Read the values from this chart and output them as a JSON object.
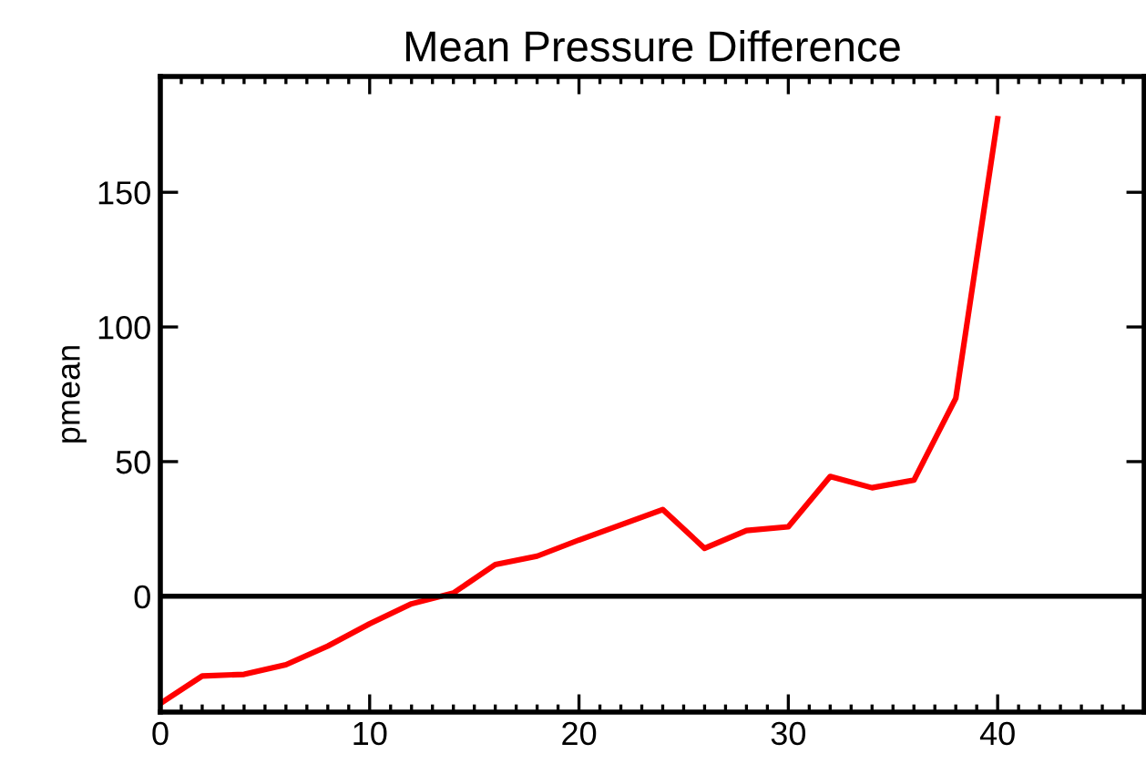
{
  "chart_data": {
    "type": "line",
    "title": "Mean Pressure Difference",
    "ylabel": "pmean",
    "x": [
      0,
      2,
      4,
      6,
      8,
      10,
      12,
      14,
      16,
      18,
      20,
      22,
      24,
      26,
      28,
      30,
      32,
      34,
      36,
      38,
      40
    ],
    "series": [
      {
        "color": "#ff0000",
        "values": [
          -39.8,
          -29.6,
          -29,
          -25.4,
          -18.5,
          -10.2,
          -2.8,
          1.2,
          11.8,
          14.9,
          20.9,
          26.5,
          32.2,
          17.8,
          24.4,
          25.8,
          44.5,
          40.3,
          43.1,
          73.5,
          177.3
        ]
      }
    ],
    "xlim": [
      0,
      47
    ],
    "ylim": [
      -43,
      193
    ],
    "xticks": [
      0,
      10,
      20,
      30,
      40
    ],
    "yticks": [
      0,
      50,
      100,
      150
    ],
    "ref_lines": [
      {
        "axis": "y",
        "value": 0,
        "color": "#000000"
      }
    ],
    "grid": false,
    "legend": false,
    "marker": "none",
    "line_style": "solid"
  }
}
